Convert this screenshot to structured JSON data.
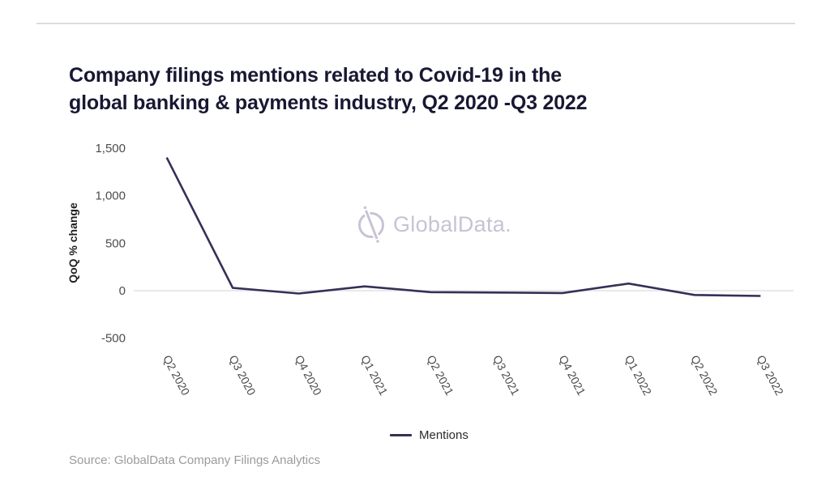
{
  "page": {
    "title_line1": "Company filings mentions related to Covid-19 in the",
    "title_line2": "global banking & payments industry, Q2 2020 -Q3 2022",
    "source": "Source: GlobalData Company Filings Analytics",
    "watermark_text": "GlobalData."
  },
  "legend": {
    "label": "Mentions"
  },
  "colors": {
    "series_line": "#343057",
    "title_text": "#191833",
    "axis_tick_text": "#4c4c4c",
    "axis_title_text": "#1f1f1f",
    "gridline": "#e2e2e2",
    "divider": "#dcdcdc",
    "watermark": "#c8c3d4",
    "source_text": "#9b9b9b"
  },
  "chart_data": {
    "type": "line",
    "title": "Company filings mentions related to Covid-19 in the global banking & payments industry, Q2 2020 -Q3 2022",
    "categories": [
      "Q2 2020",
      "Q3 2020",
      "Q4 2020",
      "Q1 2021",
      "Q2 2021",
      "Q3 2021",
      "Q4 2021",
      "Q1 2022",
      "Q2 2022",
      "Q3 2022"
    ],
    "series": [
      {
        "name": "Mentions",
        "values": [
          1400,
          30,
          -30,
          45,
          -15,
          -20,
          -25,
          75,
          -45,
          -55
        ]
      }
    ],
    "xlabel": "",
    "ylabel": "QoQ % change",
    "ylim": [
      -500,
      1500
    ],
    "yticks": [
      {
        "value": 1500,
        "label": "1,500"
      },
      {
        "value": 1000,
        "label": "1,000"
      },
      {
        "value": 500,
        "label": "500"
      },
      {
        "value": 0,
        "label": "0"
      },
      {
        "value": -500,
        "label": "-500"
      }
    ],
    "grid": "horizontal zero-line only",
    "legend_position": "bottom-center",
    "x_label_rotation_deg": 62
  }
}
